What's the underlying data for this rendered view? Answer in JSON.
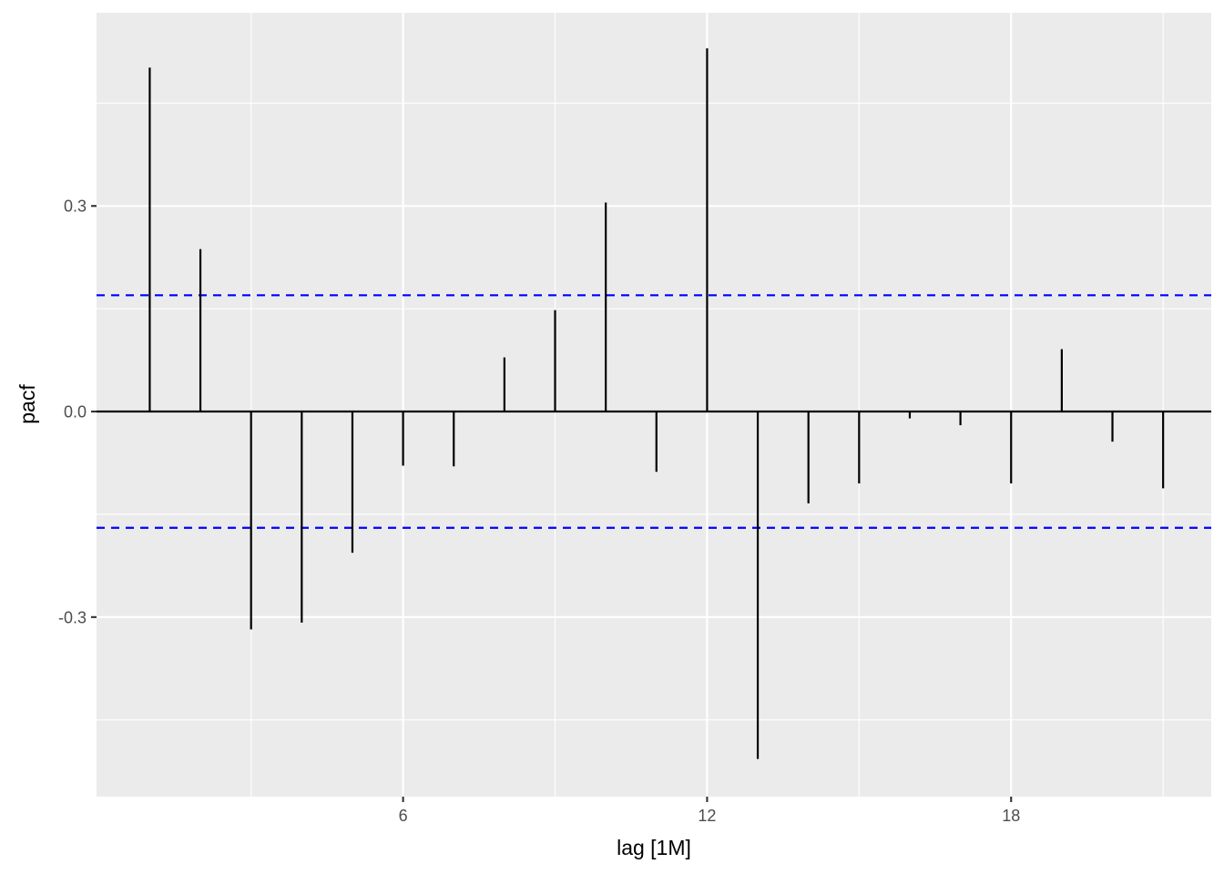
{
  "chart_data": {
    "type": "bar",
    "title": "",
    "xlabel": "lag [1M]",
    "ylabel": "pacf",
    "x": [
      1,
      2,
      3,
      4,
      5,
      6,
      7,
      8,
      9,
      10,
      11,
      12,
      13,
      14,
      15,
      16,
      17,
      18,
      19,
      20,
      21
    ],
    "values": [
      0.502,
      0.237,
      -0.318,
      -0.308,
      -0.206,
      -0.079,
      -0.08,
      0.079,
      0.148,
      0.305,
      -0.088,
      0.53,
      -0.507,
      -0.134,
      -0.105,
      -0.01,
      -0.02,
      -0.105,
      0.091,
      -0.044,
      -0.112
    ],
    "xlim": [
      -0.05,
      21.95
    ],
    "ylim": [
      -0.562,
      0.582
    ],
    "x_ticks": [
      6,
      12,
      18
    ],
    "x_tick_labels": [
      "6",
      "12",
      "18"
    ],
    "y_ticks": [
      -0.3,
      0.0,
      0.3
    ],
    "y_tick_labels": [
      "-0.3",
      "0.0",
      "0.3"
    ],
    "confidence_bounds": [
      0.1697,
      -0.1697
    ],
    "grid": true,
    "legend": "none",
    "colors": {
      "panel_background": "#ebebeb",
      "grid": "#ffffff",
      "bars": "#000000",
      "zero_line": "#000000",
      "confidence_lines": "#0000ff",
      "tick_text": "#4d4d4d",
      "axis_title": "#000000"
    }
  }
}
